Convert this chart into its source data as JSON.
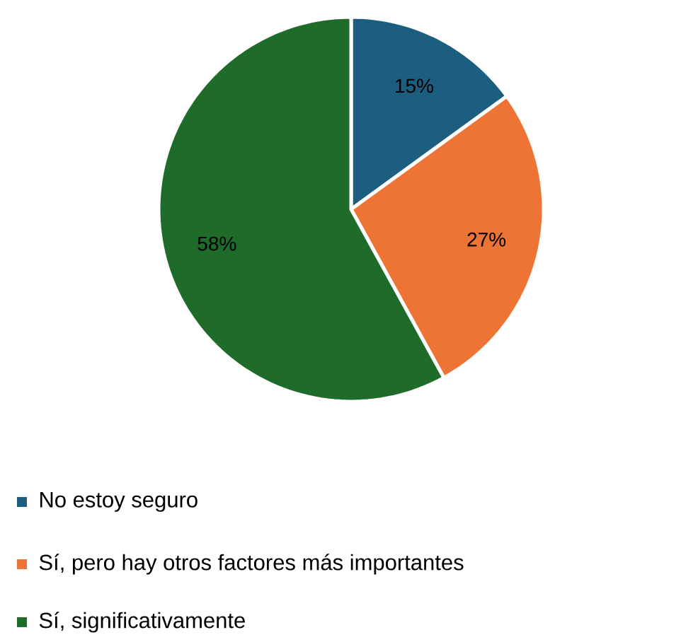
{
  "chart_data": {
    "type": "pie",
    "categories": [
      "No estoy seguro",
      "Sí, pero hay otros factores más importantes",
      "Sí, significativamente"
    ],
    "values": [
      15,
      27,
      58
    ],
    "colors": [
      "#1b5e80",
      "#ed7434",
      "#1e6b2a"
    ],
    "value_labels": [
      "15%",
      "27%",
      "58%"
    ],
    "legend": "bottom"
  }
}
